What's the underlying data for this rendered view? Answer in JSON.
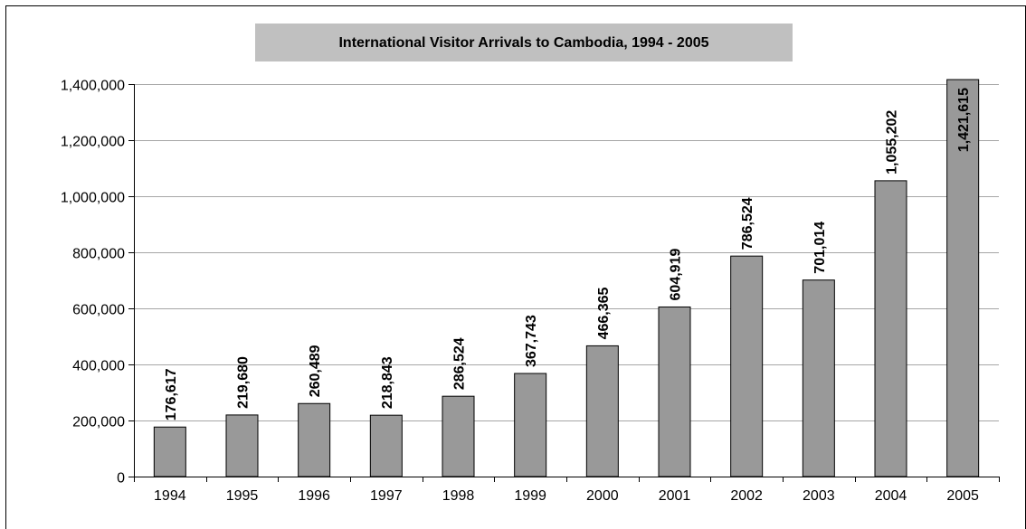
{
  "chart_data": {
    "type": "bar",
    "title": "International Visitor Arrivals to Cambodia, 1994 - 2005",
    "categories": [
      "1994",
      "1995",
      "1996",
      "1997",
      "1998",
      "1999",
      "2000",
      "2001",
      "2002",
      "2003",
      "2004",
      "2005"
    ],
    "values": [
      176617,
      219680,
      260489,
      218843,
      286524,
      367743,
      466365,
      604919,
      786524,
      701014,
      1055202,
      1421615
    ],
    "data_labels": [
      "176,617",
      "219,680",
      "260,489",
      "218,843",
      "286,524",
      "367,743",
      "466,365",
      "604,919",
      "786,524",
      "701,014",
      "1,055,202",
      "1,421,615"
    ],
    "y_ticks": [
      0,
      200000,
      400000,
      600000,
      800000,
      1000000,
      1200000,
      1400000
    ],
    "y_tick_labels": [
      "0",
      "200,000",
      "400,000",
      "600,000",
      "800,000",
      "1,000,000",
      "1,200,000",
      "1,400,000"
    ],
    "ylim": [
      0,
      1400000
    ],
    "xlabel": "",
    "ylabel": "",
    "grid": true,
    "legend": "none",
    "bar_color": "#999999",
    "title_background": "#c0c0c0"
  }
}
